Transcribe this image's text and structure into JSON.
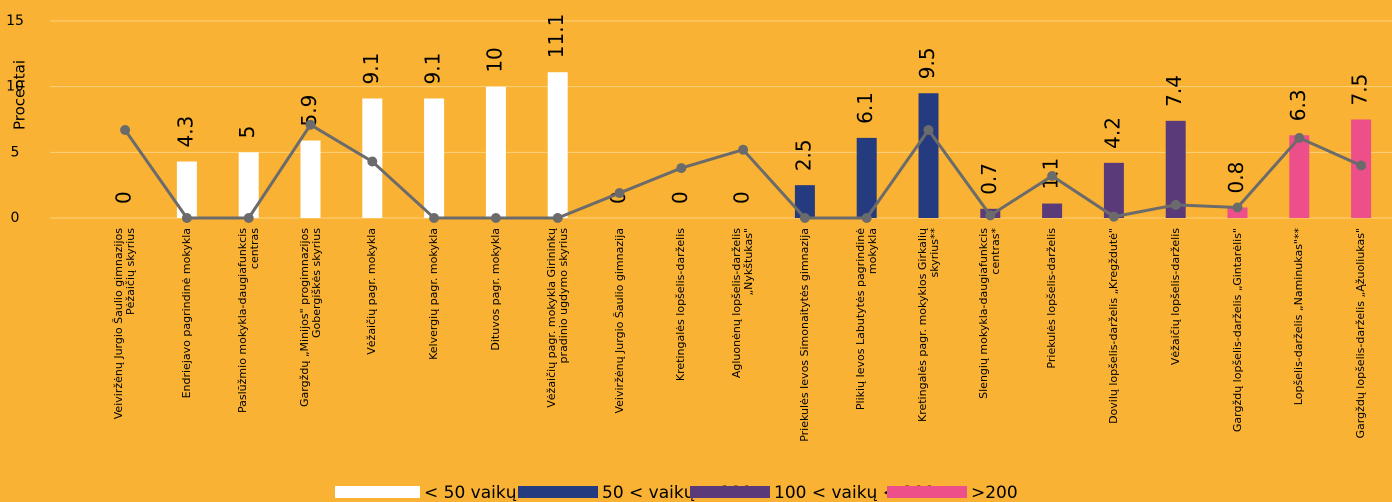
{
  "chart_data": {
    "type": "bar",
    "y_label": "Procentai",
    "categories": [
      "Veiviržėnų Jurgio Šaulio gimnazijos Pėžaičių skyrius",
      "Endriejavo pagrindinė mokykla",
      "Paslūžmio mokykla-daugiafunkcis centras",
      "Gargždų „Minijos\" progimnazijos Gobergiškės skyrius",
      "Vėžaičių pagr. mokykla",
      "Kelvergių pagr. mokykla",
      "Dituvos pagr. mokykla",
      "Vėžaičių pagr. mokykla Girininkų pradinio ugdymo skyrius",
      "Veiviržėnų Jurgio Šaulio gimnazija",
      "Kretingalės lopšelis-darželis",
      "Agluonėnų lopšelis-darželis „Nykštukas\"",
      "Priekulės Ievos Simonaitytės gimnazija",
      "Plikių Ievos Labutytės pagrindinė mokykla",
      "Kretingalės pagr. mokyklos Girkalių skyrius**",
      "Slengių mokykla-daugiafunkcis centras*",
      "Priekulės lopšelis-darželis",
      "Dovilų lopšelis-darželis „Kregždutė\"",
      "Vėžaičių lopšelis-darželis",
      "Gargždų lopšelis-darželis „Gintarėlis\"",
      "Lopšelis-darželis „Naminukas\"**",
      "Gargždų lopšelis-darželis „Ąžuoliukas\""
    ],
    "series": [
      {
        "name": "< 50 vaikų",
        "color": "#ffffff",
        "values": [
          0,
          4.3,
          5,
          5.9,
          9.1,
          9.1,
          10,
          11.1,
          null,
          null,
          null,
          null,
          null,
          null,
          null,
          null,
          null,
          null,
          null,
          null,
          null
        ]
      },
      {
        "name": "50 < vaikų < 100",
        "color": "#253b80",
        "values": [
          null,
          null,
          null,
          null,
          null,
          null,
          null,
          null,
          0,
          0,
          0,
          2.5,
          6.1,
          9.5,
          null,
          null,
          null,
          null,
          null,
          null,
          null
        ]
      },
      {
        "name": "100 < vaikų < 200",
        "color": "#5b3a7a",
        "values": [
          null,
          null,
          null,
          null,
          null,
          null,
          null,
          null,
          null,
          null,
          null,
          null,
          null,
          null,
          0.7,
          1.1,
          4.2,
          7.4,
          null,
          null,
          null
        ]
      },
      {
        "name": ">200",
        "color": "#ec4f8a",
        "values": [
          null,
          null,
          null,
          null,
          null,
          null,
          null,
          null,
          null,
          null,
          null,
          null,
          null,
          null,
          null,
          null,
          null,
          null,
          0.8,
          6.3,
          7.5
        ]
      }
    ],
    "line": {
      "color": "#6b6b6b",
      "values": [
        6.7,
        0,
        0,
        7.1,
        4.3,
        0,
        0,
        0,
        1.9,
        3.8,
        5.2,
        0,
        0,
        6.7,
        0.2,
        3.2,
        0.1,
        1.0,
        0.8,
        6.1,
        4.0
      ]
    },
    "ylim": [
      0,
      15
    ],
    "yticks": [
      0,
      5,
      10,
      15
    ],
    "grid": true
  }
}
